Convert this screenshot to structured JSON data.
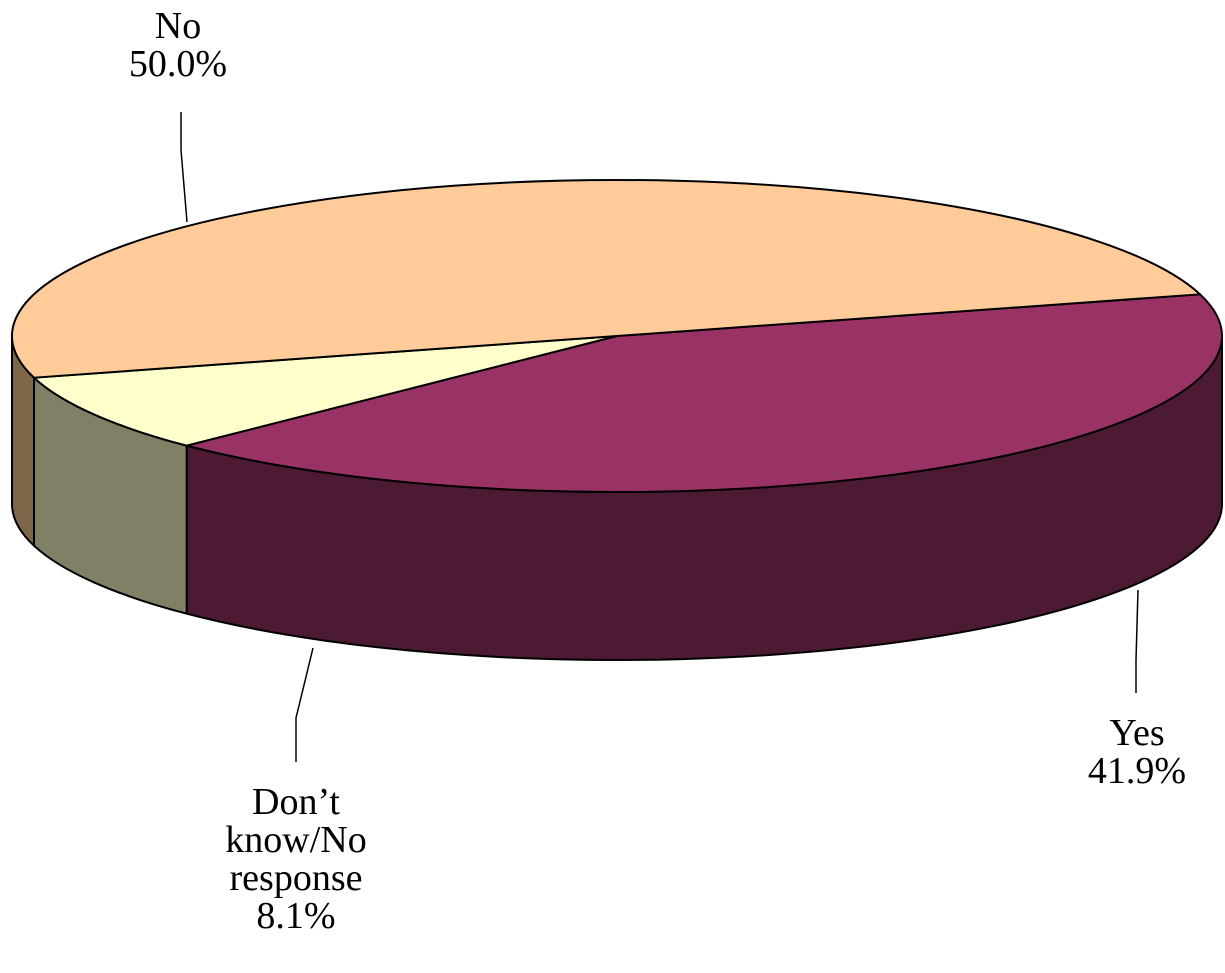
{
  "chart_data": {
    "type": "pie",
    "style": "3d",
    "slices": [
      {
        "label_lines": [
          "Yes"
        ],
        "value": 41.9,
        "value_label": "41.9%",
        "color": "#993366",
        "side_color": "#4d1a33"
      },
      {
        "label_lines": [
          "Don’t",
          "know/No",
          "response"
        ],
        "value": 8.1,
        "value_label": "8.1%",
        "color": "#ffffcc",
        "side_color": "#808066"
      },
      {
        "label_lines": [
          "No"
        ],
        "value": 50.0,
        "value_label": "50.0%",
        "color": "#ffcc99",
        "side_color": "#806649"
      }
    ]
  }
}
